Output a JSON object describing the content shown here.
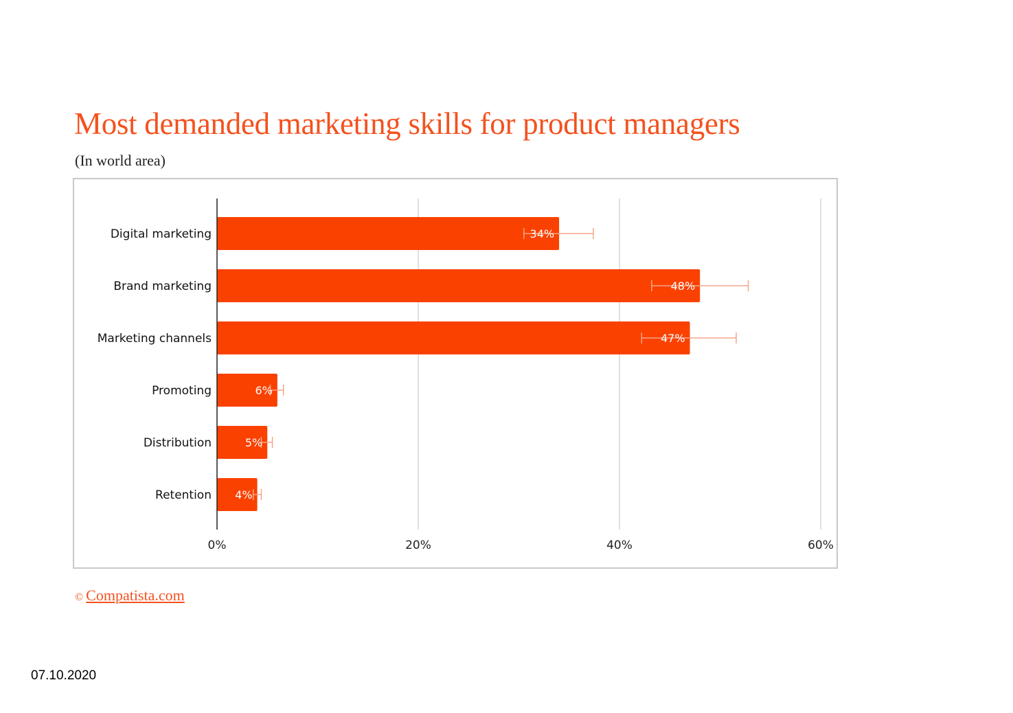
{
  "header": {
    "title": "Most demanded marketing skills for product managers",
    "subtitle": "(In world area)"
  },
  "footer": {
    "copyright_symbol": "©",
    "source_link": "Compatista.com",
    "date": "07.10.2020"
  },
  "colors": {
    "bar": "#fa4100",
    "error_bar": "#f4a58a",
    "title": "#f4511e",
    "grid": "#cccccc",
    "axis": "#222222"
  },
  "chart_data": {
    "type": "bar",
    "orientation": "horizontal",
    "title": "Most demanded marketing skills for product managers",
    "subtitle": "(In world area)",
    "categories": [
      "Digital marketing",
      "Brand marketing",
      "Marketing channels",
      "Promoting",
      "Distribution",
      "Retention"
    ],
    "values": [
      34,
      48,
      47,
      6,
      5,
      4
    ],
    "value_labels": [
      "34%",
      "48%",
      "47%",
      "6%",
      "5%",
      "4%"
    ],
    "error_bars": [
      {
        "low": 30.5,
        "high": 37.4
      },
      {
        "low": 43.2,
        "high": 52.8
      },
      {
        "low": 42.2,
        "high": 51.6
      },
      {
        "low": 5.3,
        "high": 6.6
      },
      {
        "low": 4.4,
        "high": 5.5
      },
      {
        "low": 3.6,
        "high": 4.4
      }
    ],
    "xlim": [
      0,
      60
    ],
    "x_ticks": [
      0,
      20,
      40,
      60
    ],
    "x_tick_labels": [
      "0%",
      "20%",
      "40%",
      "60%"
    ],
    "grid": true,
    "legend": "none"
  }
}
